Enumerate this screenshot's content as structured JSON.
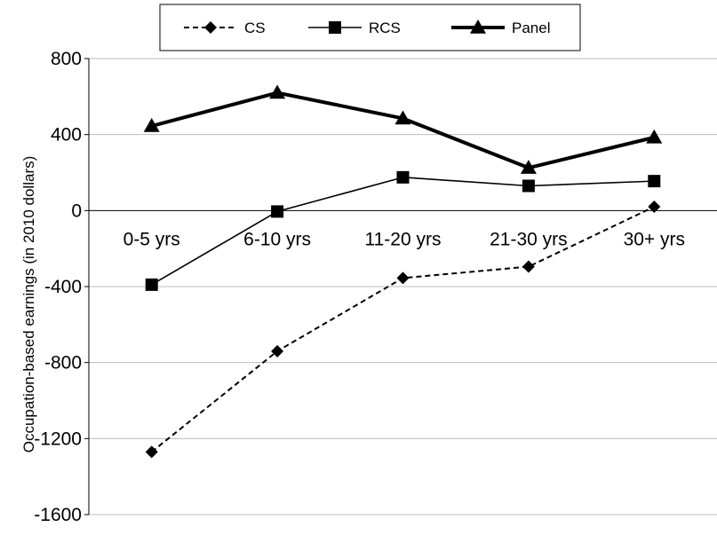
{
  "chart_data": {
    "type": "line",
    "categories": [
      "0-5 yrs",
      "6-10 yrs",
      "11-20 yrs",
      "21-30 yrs",
      "30+ yrs"
    ],
    "series": [
      {
        "name": "CS",
        "values": [
          -1270,
          -740,
          -355,
          -295,
          20
        ],
        "color": "#000000",
        "line_style": "dashed",
        "marker": "diamond"
      },
      {
        "name": "RCS",
        "values": [
          -390,
          -5,
          175,
          130,
          155
        ],
        "color": "#000000",
        "line_style": "solid-thin",
        "marker": "square"
      },
      {
        "name": "Panel",
        "values": [
          445,
          620,
          485,
          225,
          385
        ],
        "color": "#000000",
        "line_style": "solid-thick",
        "marker": "triangle"
      }
    ],
    "ylabel": "Occupation-based earnings (in 2010 dollars)",
    "xlabel": "",
    "ylim": [
      -1600,
      800
    ],
    "yticks": [
      800,
      400,
      0,
      -400,
      -800,
      -1200,
      -1600
    ],
    "grid": true,
    "legend": "top-center"
  }
}
